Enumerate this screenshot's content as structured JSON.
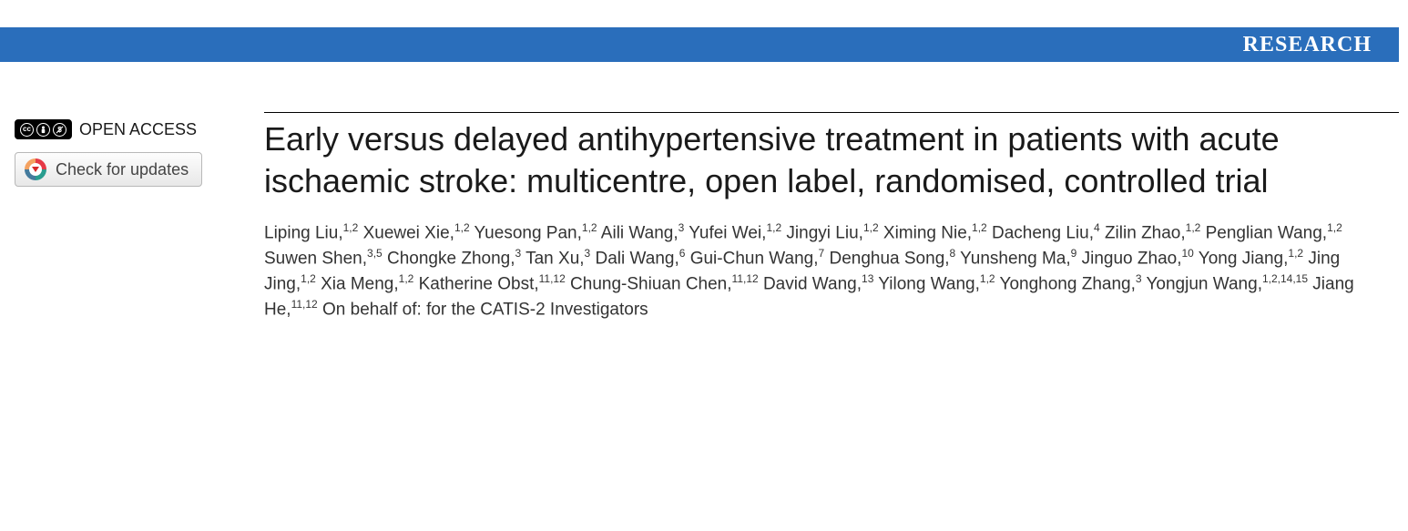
{
  "header": {
    "label": "RESEARCH",
    "bar_color": "#2a6ebb",
    "text_color": "#ffffff"
  },
  "left": {
    "open_access_label": "OPEN ACCESS",
    "cc_symbols": [
      "cc",
      "①",
      "$"
    ],
    "updates_label": "Check for updates"
  },
  "article": {
    "title": "Early versus delayed antihypertensive treatment in patients with acute ischaemic stroke: multicentre, open label, randomised, controlled trial",
    "authors": [
      {
        "name": "Liping Liu",
        "aff": "1,2"
      },
      {
        "name": "Xuewei Xie",
        "aff": "1,2"
      },
      {
        "name": "Yuesong Pan",
        "aff": "1,2"
      },
      {
        "name": "Aili Wang",
        "aff": "3"
      },
      {
        "name": "Yufei Wei",
        "aff": "1,2"
      },
      {
        "name": "Jingyi Liu",
        "aff": "1,2"
      },
      {
        "name": "Ximing Nie",
        "aff": "1,2"
      },
      {
        "name": "Dacheng Liu",
        "aff": "4"
      },
      {
        "name": "Zilin Zhao",
        "aff": "1,2"
      },
      {
        "name": "Penglian Wang",
        "aff": "1,2"
      },
      {
        "name": "Suwen Shen",
        "aff": "3,5"
      },
      {
        "name": "Chongke Zhong",
        "aff": "3"
      },
      {
        "name": "Tan Xu",
        "aff": "3"
      },
      {
        "name": "Dali Wang",
        "aff": "6"
      },
      {
        "name": "Gui-Chun Wang",
        "aff": "7"
      },
      {
        "name": "Denghua Song",
        "aff": "8"
      },
      {
        "name": "Yunsheng Ma",
        "aff": "9"
      },
      {
        "name": "Jinguo Zhao",
        "aff": "10"
      },
      {
        "name": "Yong Jiang",
        "aff": "1,2"
      },
      {
        "name": "Jing Jing",
        "aff": "1,2"
      },
      {
        "name": "Xia Meng",
        "aff": "1,2"
      },
      {
        "name": "Katherine Obst",
        "aff": "11,12"
      },
      {
        "name": "Chung-Shiuan Chen",
        "aff": "11,12"
      },
      {
        "name": "David Wang",
        "aff": "13"
      },
      {
        "name": "Yilong Wang",
        "aff": "1,2"
      },
      {
        "name": "Yonghong Zhang",
        "aff": "3"
      },
      {
        "name": "Yongjun Wang",
        "aff": "1,2,14,15"
      },
      {
        "name": "Jiang He",
        "aff": "11,12"
      }
    ],
    "behalf": "On behalf of: for the CATIS-2 Investigators"
  },
  "style": {
    "title_fontsize": 36,
    "author_fontsize": 19,
    "title_color": "#1a1a1a",
    "rule_color": "#000000"
  }
}
